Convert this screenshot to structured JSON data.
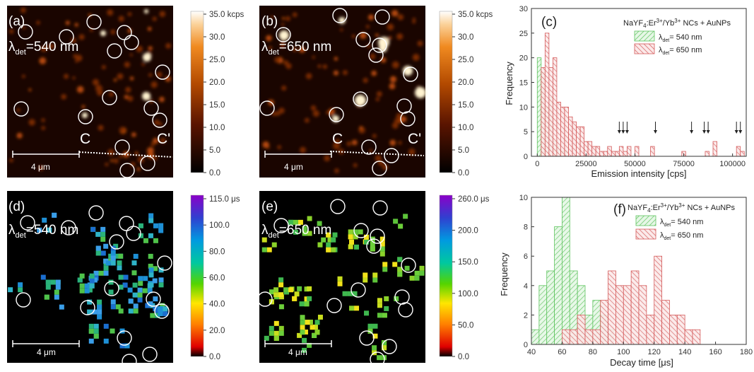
{
  "panels": {
    "a": {
      "label": "(a)",
      "det": "540 nm"
    },
    "b": {
      "label": "(b)",
      "det": "650 nm"
    },
    "d": {
      "label": "(d)",
      "det": "540 nm"
    },
    "e": {
      "label": "(e)",
      "det": "650 nm"
    }
  },
  "lambda_prefix": "λ",
  "det_sub": "det",
  "scale_bar": "4 μm",
  "line_labels": {
    "start": "C",
    "end": "C'"
  },
  "colorbars": {
    "a": {
      "ticks": [
        "35.0 kcps",
        "30.0",
        "25.0",
        "20.0",
        "15.0",
        "10.0",
        "5.0",
        "0.0"
      ]
    },
    "b": {
      "ticks": [
        "35.0 kcps",
        "30.0",
        "25.0",
        "20.0",
        "15.0",
        "10.0",
        "5.0",
        "0.0"
      ]
    },
    "d": {
      "ticks": [
        "115.0 μs",
        "100.0",
        "80.0",
        "60.0",
        "40.0",
        "20.0",
        "0.0"
      ]
    },
    "e": {
      "ticks": [
        "260.0 μs",
        "200.0",
        "150.0",
        "100.0",
        "50.0",
        "0.0"
      ]
    }
  },
  "legend": {
    "base": "NaYF",
    "sub4": "4",
    "er": ":Er",
    "sup3": "3+",
    "yb": "/Yb",
    "rest": " NCs + AuNPs",
    "series1": "= 540 nm",
    "series2": "= 650 nm"
  },
  "colors": {
    "green": "#7fd67f",
    "red": "#d96c6c"
  },
  "chart_data": [
    {
      "type": "bar",
      "panel": "(c)",
      "xlabel": "Emission intensity [cps]",
      "ylabel": "Frequency",
      "xlim": [
        -3000,
        107000
      ],
      "ylim": [
        0,
        30
      ],
      "xticks": [
        0,
        25000,
        50000,
        75000,
        100000
      ],
      "yticks": [
        0,
        5,
        10,
        15,
        20,
        25,
        30
      ],
      "bin_width": 2000,
      "arrows_x": [
        42000,
        44000,
        46000,
        60500,
        79000,
        85500,
        87500,
        102000,
        104000
      ],
      "series": [
        {
          "name": "540 nm",
          "color": "#7fd67f",
          "bins_start": 0,
          "values": [
            20,
            17,
            10,
            12,
            3,
            2,
            1,
            1
          ]
        },
        {
          "name": "650 nm",
          "color": "#d96c6c",
          "bins_start": 2000,
          "values": [
            18,
            25,
            18,
            20,
            11,
            10,
            10,
            8,
            7,
            6,
            6,
            3,
            3,
            2,
            2,
            1,
            1,
            2,
            1,
            1,
            2,
            1,
            2,
            0,
            2,
            0,
            0,
            0,
            2,
            0,
            0,
            0,
            0,
            0,
            0,
            0,
            1,
            0,
            0,
            0,
            0,
            0,
            1,
            0,
            3,
            0,
            0,
            0,
            0,
            0,
            2,
            1
          ]
        }
      ]
    },
    {
      "type": "bar",
      "panel": "(f)",
      "xlabel": "Decay time [μs]",
      "ylabel": "Frequency",
      "xlim": [
        40,
        180
      ],
      "ylim": [
        0,
        10
      ],
      "xticks": [
        40,
        60,
        80,
        100,
        120,
        140,
        160,
        180
      ],
      "yticks": [
        0,
        2,
        4,
        6,
        8,
        10
      ],
      "bin_width": 5,
      "series": [
        {
          "name": "540 nm",
          "color": "#7fd67f",
          "bins_start": 40,
          "values": [
            1,
            4,
            5,
            8,
            10,
            5,
            4,
            2,
            3,
            2,
            1
          ]
        },
        {
          "name": "650 nm",
          "color": "#d96c6c",
          "bins_start": 60,
          "values": [
            1,
            1,
            2,
            1,
            1,
            3,
            5,
            4,
            4,
            5,
            4,
            2,
            6,
            3,
            2,
            2,
            1,
            1
          ]
        }
      ]
    }
  ]
}
